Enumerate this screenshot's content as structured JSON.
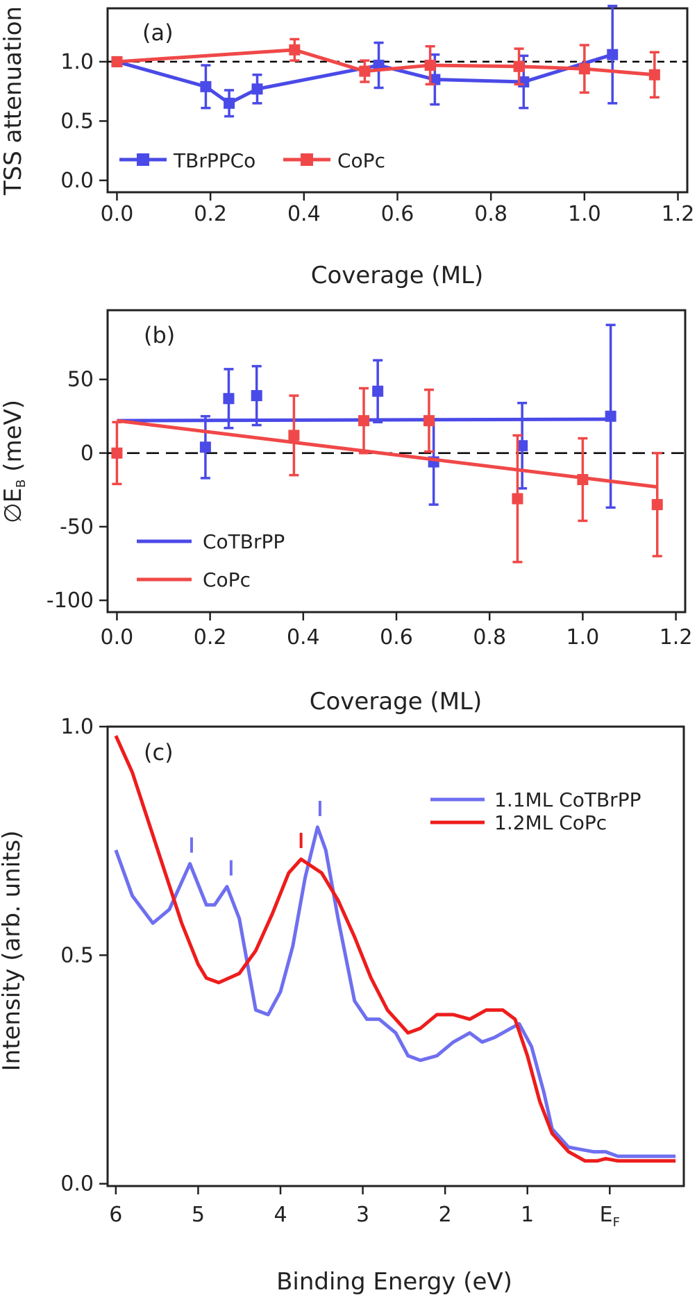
{
  "colors": {
    "blue": "#4a4ae8",
    "red": "#f04848",
    "red_line": "#ee1c1c",
    "blue_light": "#6f6ff0",
    "axis": "#222222"
  },
  "chart_data": [
    {
      "type": "line",
      "panel_label": "(a)",
      "xlabel": "Coverage (ML)",
      "ylabel": "TSS attenuation",
      "xlim": [
        -0.02,
        1.22
      ],
      "ylim": [
        -0.1,
        1.45
      ],
      "xticks": [
        "0.0",
        "0.2",
        "0.4",
        "0.6",
        "0.8",
        "1.0",
        "1.2"
      ],
      "yticks": [
        "0.0",
        "0.5",
        "1.0"
      ],
      "reference_line": 1.0,
      "legend": [
        "TBrPPCo",
        "CoPc"
      ],
      "series": [
        {
          "name": "TBrPPCo",
          "color": "blue",
          "x": [
            0.0,
            0.19,
            0.24,
            0.3,
            0.56,
            0.68,
            0.87,
            1.06
          ],
          "y": [
            1.0,
            0.79,
            0.65,
            0.77,
            0.97,
            0.85,
            0.83,
            1.06
          ],
          "err": [
            0.0,
            0.18,
            0.11,
            0.12,
            0.19,
            0.21,
            0.22,
            0.41
          ]
        },
        {
          "name": "CoPc",
          "color": "red",
          "x": [
            0.0,
            0.38,
            0.53,
            0.67,
            0.86,
            1.0,
            1.15
          ],
          "y": [
            1.0,
            1.1,
            0.92,
            0.97,
            0.96,
            0.94,
            0.89
          ],
          "err": [
            0.0,
            0.09,
            0.09,
            0.16,
            0.15,
            0.2,
            0.19
          ]
        }
      ]
    },
    {
      "type": "scatter",
      "panel_label": "(b)",
      "xlabel": "Coverage (ML)",
      "ylabel": "∅E",
      "ylabel_sub": "B",
      "ylabel_unit": " (meV)",
      "xlim": [
        -0.02,
        1.22
      ],
      "ylim": [
        -108,
        97
      ],
      "xticks": [
        "0.0",
        "0.2",
        "0.4",
        "0.6",
        "0.8",
        "1.0",
        "1.2"
      ],
      "yticks": [
        "50",
        "0",
        "-50",
        "-100"
      ],
      "reference_line": 0,
      "legend": [
        "CoTBrPP",
        "CoPc"
      ],
      "series": [
        {
          "name": "CoTBrPP",
          "color": "blue",
          "x": [
            0.19,
            0.24,
            0.3,
            0.56,
            0.68,
            0.87,
            1.06
          ],
          "y": [
            4,
            37,
            39,
            42,
            -6,
            5,
            25
          ],
          "err": [
            21,
            20,
            20,
            21,
            29,
            29,
            62
          ],
          "fit": [
            [
              0.0,
              22
            ],
            [
              1.06,
              23
            ]
          ]
        },
        {
          "name": "CoPc",
          "color": "red",
          "x": [
            0.0,
            0.38,
            0.53,
            0.67,
            0.86,
            1.0,
            1.16
          ],
          "y": [
            0,
            12,
            22,
            22,
            -31,
            -18,
            -35
          ],
          "err": [
            21,
            27,
            22,
            21,
            43,
            28,
            35
          ],
          "fit": [
            [
              0.0,
              22
            ],
            [
              1.16,
              -23
            ]
          ]
        }
      ]
    },
    {
      "type": "line",
      "panel_label": "(c)",
      "xlabel": "Binding Energy (eV)",
      "ylabel": "Intensity (arb. units)",
      "xlim": [
        6.1,
        -0.9
      ],
      "ylim": [
        -0.005,
        1.0
      ],
      "xticks": [
        "6",
        "5",
        "4",
        "3",
        "2",
        "1",
        "E"
      ],
      "xtick_F_sub": "F",
      "yticks": [
        "0.0",
        "0.5",
        "1.0"
      ],
      "legend": [
        "1.1ML CoTBrPP",
        "1.2ML CoPc"
      ],
      "series": [
        {
          "name": "1.1ML CoTBrPP",
          "color": "blue_light",
          "x": [
            6.0,
            5.8,
            5.55,
            5.35,
            5.1,
            4.9,
            4.8,
            4.65,
            4.5,
            4.3,
            4.15,
            4.0,
            3.85,
            3.7,
            3.55,
            3.45,
            3.3,
            3.1,
            2.95,
            2.8,
            2.6,
            2.45,
            2.3,
            2.1,
            1.9,
            1.7,
            1.55,
            1.4,
            1.2,
            1.1,
            0.95,
            0.8,
            0.7,
            0.5,
            0.35,
            0.2,
            0.05,
            -0.1,
            -0.8
          ],
          "y": [
            0.73,
            0.63,
            0.57,
            0.6,
            0.7,
            0.61,
            0.61,
            0.65,
            0.58,
            0.38,
            0.37,
            0.42,
            0.52,
            0.67,
            0.78,
            0.73,
            0.58,
            0.4,
            0.36,
            0.36,
            0.33,
            0.28,
            0.27,
            0.28,
            0.31,
            0.33,
            0.31,
            0.32,
            0.34,
            0.35,
            0.3,
            0.2,
            0.12,
            0.08,
            0.075,
            0.07,
            0.07,
            0.06,
            0.06
          ]
        },
        {
          "name": "1.2ML CoPc",
          "color": "red_line",
          "x": [
            6.0,
            5.8,
            5.6,
            5.4,
            5.2,
            5.0,
            4.9,
            4.75,
            4.5,
            4.3,
            4.1,
            3.9,
            3.75,
            3.5,
            3.3,
            3.1,
            2.9,
            2.7,
            2.55,
            2.45,
            2.3,
            2.1,
            1.9,
            1.7,
            1.5,
            1.3,
            1.15,
            1.0,
            0.85,
            0.7,
            0.5,
            0.3,
            0.15,
            0.05,
            -0.1,
            -0.8
          ],
          "y": [
            0.98,
            0.9,
            0.79,
            0.68,
            0.57,
            0.48,
            0.45,
            0.44,
            0.46,
            0.51,
            0.59,
            0.68,
            0.71,
            0.68,
            0.62,
            0.54,
            0.45,
            0.38,
            0.35,
            0.33,
            0.34,
            0.37,
            0.37,
            0.36,
            0.38,
            0.38,
            0.36,
            0.28,
            0.18,
            0.11,
            0.07,
            0.05,
            0.05,
            0.055,
            0.05,
            0.05
          ]
        }
      ],
      "peak_markers": [
        {
          "x": 5.08,
          "color": "blue_light"
        },
        {
          "x": 4.6,
          "color": "blue_light"
        },
        {
          "x": 3.52,
          "color": "blue_light"
        },
        {
          "x": 3.75,
          "color": "red_line"
        }
      ]
    }
  ]
}
